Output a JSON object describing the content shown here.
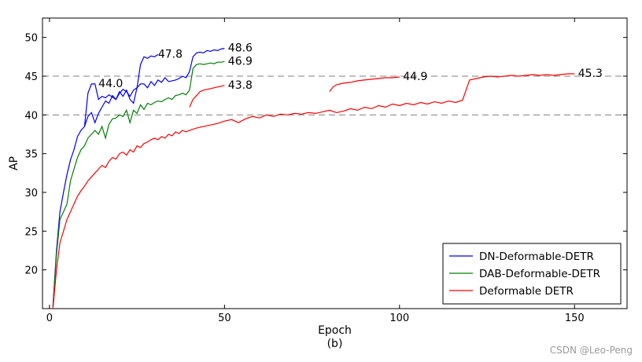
{
  "chart_data": {
    "type": "line",
    "title": "",
    "xlabel": "Epoch",
    "xlabel_sub": "(b)",
    "ylabel": "AP",
    "xlim": [
      -2,
      165
    ],
    "ylim": [
      15,
      52.5
    ],
    "xticks": [
      0,
      50,
      100,
      150
    ],
    "yticks": [
      20,
      25,
      30,
      35,
      40,
      45,
      50
    ],
    "hlines": [
      40,
      45
    ],
    "legend_position": "bottom-right",
    "series": [
      {
        "name": "DN-Deformable-DETR",
        "color": "#0000ff",
        "x": [
          1,
          2,
          3,
          4,
          5,
          6,
          7,
          8,
          9,
          10,
          11,
          12,
          13,
          14,
          15,
          16,
          17,
          18,
          19,
          20,
          21,
          22,
          23,
          24,
          25,
          26,
          27,
          28,
          29,
          30,
          31,
          32,
          33,
          34,
          35,
          36,
          37,
          38,
          39,
          40,
          41,
          42,
          43,
          44,
          45,
          46,
          47,
          48,
          49,
          50
        ],
        "y": [
          15.3,
          22.5,
          27.5,
          30.0,
          32.3,
          34.2,
          35.5,
          37.2,
          38.0,
          38.5,
          39.8,
          40.3,
          39.0,
          40.2,
          41.0,
          41.8,
          41.5,
          42.5,
          42.0,
          43.0,
          42.4,
          43.2,
          42.0,
          41.5,
          43.5,
          44.0,
          44.0,
          43.5,
          44.3,
          43.8,
          44.5,
          44.2,
          44.8,
          44.3,
          44.4,
          44.5,
          44.7,
          45.0,
          44.8,
          45.6,
          47.5,
          48.0,
          48.1,
          48.0,
          48.3,
          48.2,
          48.4,
          48.3,
          48.5,
          48.6
        ]
      },
      {
        "name": "DN-Deformable-DETR",
        "color": "#0000ff",
        "x": [
          10,
          11,
          12,
          13,
          14,
          15,
          16,
          17,
          18,
          19,
          20,
          21,
          22,
          23,
          24,
          25,
          26,
          27,
          28,
          29,
          30,
          31
        ],
        "y": [
          38.5,
          42.8,
          44.0,
          44.0,
          42.0,
          42.4,
          42.2,
          42.6,
          42.3,
          42.0,
          42.8,
          43.3,
          43.0,
          42.4,
          43.2,
          43.5,
          46.5,
          47.5,
          47.3,
          47.6,
          47.5,
          47.8
        ]
      },
      {
        "name": "DAB-Deformable-DETR",
        "color": "#008000",
        "x": [
          1,
          2,
          3,
          4,
          5,
          6,
          7,
          8,
          9,
          10,
          11,
          12,
          13,
          14,
          15,
          16,
          17,
          18,
          19,
          20,
          21,
          22,
          23,
          24,
          25,
          26,
          27,
          28,
          29,
          30,
          31,
          32,
          33,
          34,
          35,
          36,
          37,
          38,
          39,
          40,
          41,
          42,
          43,
          44,
          45,
          46,
          47,
          48,
          49,
          50
        ],
        "y": [
          15.2,
          22.0,
          26.5,
          27.5,
          28.5,
          31.5,
          33.0,
          34.5,
          35.5,
          36.0,
          37.0,
          37.5,
          38.0,
          37.5,
          38.5,
          37.0,
          38.8,
          39.5,
          39.6,
          40.0,
          39.8,
          40.6,
          39.0,
          40.6,
          40.2,
          41.3,
          40.7,
          41.5,
          41.3,
          41.6,
          41.8,
          41.7,
          42.0,
          42.2,
          42.0,
          42.5,
          42.6,
          42.8,
          42.6,
          43.2,
          46.0,
          46.5,
          46.6,
          46.5,
          46.6,
          46.7,
          46.6,
          46.8,
          46.8,
          46.9
        ]
      },
      {
        "name": "Deformable DETR",
        "color": "#ff0000",
        "x": [
          1,
          2,
          3,
          4,
          5,
          6,
          7,
          8,
          9,
          10,
          11,
          12,
          13,
          14,
          15,
          16,
          17,
          18,
          19,
          20,
          21,
          22,
          23,
          24,
          25,
          26,
          27,
          28,
          29,
          30,
          31,
          32,
          33,
          34,
          35,
          36,
          37,
          38,
          39,
          40,
          42,
          44,
          46,
          48,
          50,
          52,
          54,
          56,
          58,
          60,
          62,
          64,
          66,
          68,
          70,
          72,
          74,
          76,
          78,
          80,
          82,
          84,
          86,
          88,
          90,
          92,
          94,
          96,
          98,
          100,
          102,
          104,
          106,
          108,
          110,
          112,
          114,
          116,
          118,
          120,
          122,
          124,
          126,
          128,
          130,
          132,
          134,
          136,
          138,
          140,
          142,
          144,
          146,
          148,
          150
        ],
        "y": [
          15.0,
          20.0,
          23.5,
          25.0,
          26.5,
          27.5,
          28.5,
          29.5,
          30.2,
          30.8,
          31.5,
          32.0,
          32.5,
          33.0,
          33.5,
          33.2,
          34.0,
          34.5,
          34.3,
          35.0,
          35.2,
          34.8,
          35.5,
          35.2,
          36.0,
          35.8,
          36.3,
          36.5,
          36.8,
          37.0,
          36.8,
          37.2,
          37.0,
          37.5,
          37.3,
          37.8,
          37.6,
          38.0,
          37.8,
          38.0,
          38.3,
          38.5,
          38.7,
          38.9,
          39.2,
          39.4,
          39.0,
          39.5,
          39.8,
          39.6,
          40.0,
          39.8,
          40.1,
          40.0,
          40.2,
          40.1,
          40.3,
          40.2,
          40.4,
          40.6,
          40.3,
          40.5,
          40.8,
          40.6,
          41.0,
          40.8,
          41.2,
          41.0,
          41.4,
          41.2,
          41.5,
          41.3,
          41.6,
          41.4,
          41.7,
          41.5,
          41.8,
          41.6,
          41.9,
          44.5,
          44.7,
          44.9,
          45.0,
          44.9,
          45.0,
          45.1,
          45.0,
          45.1,
          45.2,
          45.1,
          45.2,
          45.1,
          45.2,
          45.3,
          45.3
        ]
      },
      {
        "name": "Deformable DETR",
        "color": "#ff0000",
        "x": [
          40,
          41,
          42,
          43,
          44,
          45,
          46,
          47,
          48,
          49,
          50
        ],
        "y": [
          41.0,
          42.0,
          42.5,
          43.0,
          43.2,
          43.3,
          43.4,
          43.5,
          43.6,
          43.7,
          43.8
        ]
      },
      {
        "name": "Deformable DETR",
        "color": "#ff0000",
        "x": [
          80,
          81,
          82,
          84,
          86,
          88,
          90,
          92,
          94,
          96,
          98,
          100
        ],
        "y": [
          43.0,
          43.6,
          43.9,
          44.1,
          44.2,
          44.4,
          44.5,
          44.6,
          44.7,
          44.8,
          44.8,
          44.9
        ]
      }
    ],
    "legend": [
      "DN-Deformable-DETR",
      "DAB-Deformable-DETR",
      "Deformable DETR"
    ],
    "annotations": [
      {
        "text": "44.0",
        "x": 14,
        "y": 44.0
      },
      {
        "text": "47.8",
        "x": 31,
        "y": 47.8
      },
      {
        "text": "48.6",
        "x": 51,
        "y": 48.6
      },
      {
        "text": "46.9",
        "x": 51,
        "y": 46.9
      },
      {
        "text": "43.8",
        "x": 51,
        "y": 43.8
      },
      {
        "text": "44.9",
        "x": 101,
        "y": 44.9
      },
      {
        "text": "45.3",
        "x": 151,
        "y": 45.3
      }
    ]
  },
  "watermark": "CSDN @Leo-Peng"
}
